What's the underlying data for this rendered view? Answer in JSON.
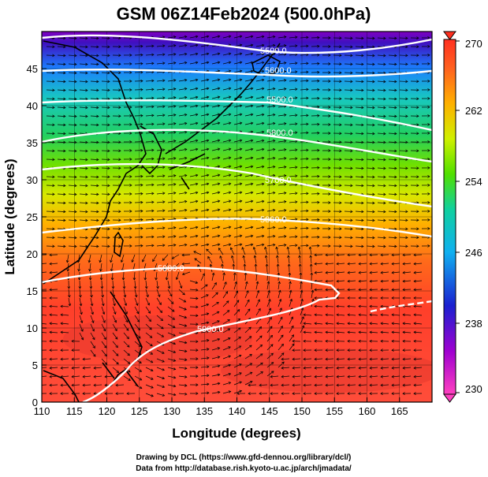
{
  "title": "GSM 06Z14Feb2024 (500.0hPa)",
  "xlabel": "Longitude (degrees)",
  "ylabel": "Latitude  (degrees)",
  "x_ticks": [
    "110",
    "115",
    "120",
    "125",
    "130",
    "135",
    "140",
    "145",
    "150",
    "155",
    "160",
    "165"
  ],
  "y_ticks": [
    "0",
    "5",
    "10",
    "15",
    "20",
    "25",
    "30",
    "35",
    "40",
    "45"
  ],
  "colorbar_ticks": [
    "230",
    "238",
    "246",
    "254",
    "262",
    "270"
  ],
  "contour_labels": [
    "5500.0",
    "5600.0",
    "5500.0",
    "5800.0",
    "5700.0",
    "5800.0",
    "5900.0",
    "5900.0"
  ],
  "credit_line1": "Drawing by DCL (https://www.gfd-dennou.org/library/dcl/)",
  "credit_line2": "Data from http://database.rish.kyoto-u.ac.jp/arch/jmadata/",
  "chart_data": {
    "type": "heatmap",
    "title": "GSM 06Z14Feb2024 (500.0hPa)",
    "xlabel": "Longitude (degrees)",
    "ylabel": "Latitude  (degrees)",
    "xlim": [
      110,
      170
    ],
    "ylim": [
      0,
      50
    ],
    "colorbar_range": [
      230,
      270
    ],
    "field_by_latitude": {
      "lat": [
        0,
        5,
        10,
        15,
        20,
        25,
        30,
        35,
        40,
        45,
        50
      ],
      "value": [
        266,
        266,
        265,
        265,
        263,
        260,
        256,
        252,
        249,
        244,
        238
      ]
    },
    "height_contours": [
      5500,
      5600,
      5700,
      5800,
      5900
    ],
    "vectors": "wind streamlines, westerly north of ~20N, anticyclonic circulation near 133E 17N",
    "grid": true
  }
}
